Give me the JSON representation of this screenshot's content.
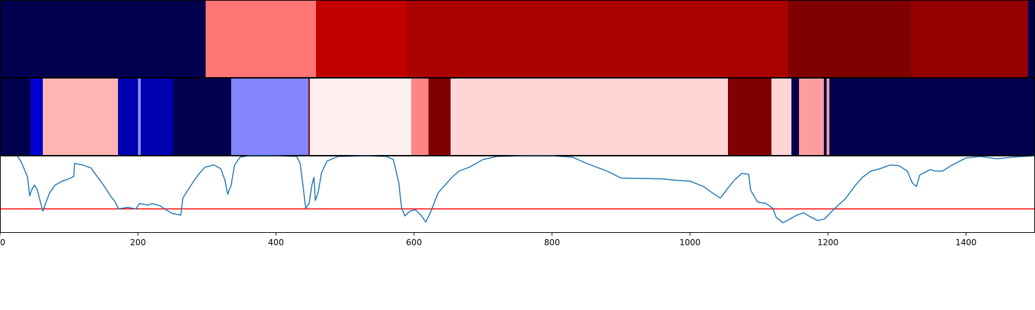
{
  "chart_data": [
    {
      "type": "heatmap",
      "colormap": "seismic",
      "x_range": [
        0,
        1500
      ],
      "segments": [
        {
          "x0": 0,
          "x1": 298,
          "color": "#00004e"
        },
        {
          "x0": 298,
          "x1": 458,
          "color": "#ff7575"
        },
        {
          "x0": 458,
          "x1": 590,
          "color": "#c10000"
        },
        {
          "x0": 590,
          "x1": 1142,
          "color": "#aa0000"
        },
        {
          "x0": 1142,
          "x1": 1320,
          "color": "#800000"
        },
        {
          "x0": 1320,
          "x1": 1490,
          "color": "#940000"
        },
        {
          "x0": 1490,
          "x1": 1500,
          "color": "#00004e"
        }
      ]
    },
    {
      "type": "heatmap",
      "colormap": "seismic",
      "x_range": [
        0,
        1500
      ],
      "segments": [
        {
          "x0": 0,
          "x1": 44,
          "color": "#00004e"
        },
        {
          "x0": 44,
          "x1": 62,
          "color": "#0000d0"
        },
        {
          "x0": 62,
          "x1": 171,
          "color": "#ffb5b5"
        },
        {
          "x0": 171,
          "x1": 200,
          "color": "#0000b2"
        },
        {
          "x0": 200,
          "x1": 204,
          "color": "#8c8cff"
        },
        {
          "x0": 204,
          "x1": 251,
          "color": "#0000b2"
        },
        {
          "x0": 251,
          "x1": 335,
          "color": "#00004e"
        },
        {
          "x0": 335,
          "x1": 447,
          "color": "#8484ff"
        },
        {
          "x0": 447,
          "x1": 449,
          "color": "#800000"
        },
        {
          "x0": 449,
          "x1": 596,
          "color": "#fff0f0"
        },
        {
          "x0": 596,
          "x1": 621,
          "color": "#ff8585"
        },
        {
          "x0": 621,
          "x1": 653,
          "color": "#800000"
        },
        {
          "x0": 653,
          "x1": 1055,
          "color": "#ffd5d5"
        },
        {
          "x0": 1055,
          "x1": 1118,
          "color": "#800000"
        },
        {
          "x0": 1118,
          "x1": 1147,
          "color": "#ffd5d5"
        },
        {
          "x0": 1147,
          "x1": 1158,
          "color": "#00004e"
        },
        {
          "x0": 1158,
          "x1": 1194,
          "color": "#ff9d9d"
        },
        {
          "x0": 1194,
          "x1": 1198,
          "color": "#00004e"
        },
        {
          "x0": 1198,
          "x1": 1202,
          "color": "#ff9d9d"
        },
        {
          "x0": 1202,
          "x1": 1500,
          "color": "#00004e"
        }
      ]
    },
    {
      "type": "line",
      "x_range": [
        0,
        1500
      ],
      "ylim": [
        0,
        1
      ],
      "xticks": [
        0,
        200,
        400,
        600,
        800,
        1000,
        1200,
        1400
      ],
      "xtick_labels": [
        "0",
        "200",
        "400",
        "600",
        "800",
        "1000",
        "1200",
        "1400"
      ],
      "series": [
        {
          "color": "#1f77b4",
          "points": [
            [
              25,
              1.0
            ],
            [
              30,
              0.93
            ],
            [
              35,
              0.83
            ],
            [
              40,
              0.72
            ],
            [
              43,
              0.48
            ],
            [
              46,
              0.56
            ],
            [
              50,
              0.62
            ],
            [
              54,
              0.56
            ],
            [
              58,
              0.42
            ],
            [
              62,
              0.28
            ],
            [
              66,
              0.38
            ],
            [
              72,
              0.52
            ],
            [
              80,
              0.62
            ],
            [
              90,
              0.67
            ],
            [
              100,
              0.7
            ],
            [
              107,
              0.73
            ],
            [
              108,
              0.9
            ],
            [
              120,
              0.88
            ],
            [
              132,
              0.84
            ],
            [
              140,
              0.74
            ],
            [
              150,
              0.62
            ],
            [
              160,
              0.48
            ],
            [
              167,
              0.4
            ],
            [
              172,
              0.31
            ],
            [
              185,
              0.33
            ],
            [
              197,
              0.31
            ],
            [
              202,
              0.38
            ],
            [
              215,
              0.36
            ],
            [
              220,
              0.38
            ],
            [
              232,
              0.35
            ],
            [
              242,
              0.29
            ],
            [
              250,
              0.25
            ],
            [
              262,
              0.23
            ],
            [
              265,
              0.45
            ],
            [
              272,
              0.55
            ],
            [
              280,
              0.66
            ],
            [
              288,
              0.76
            ],
            [
              297,
              0.85
            ],
            [
              310,
              0.88
            ],
            [
              320,
              0.83
            ],
            [
              326,
              0.68
            ],
            [
              330,
              0.5
            ],
            [
              335,
              0.62
            ],
            [
              340,
              0.88
            ],
            [
              348,
              0.98
            ],
            [
              360,
              1.0
            ],
            [
              400,
              1.0
            ],
            [
              430,
              0.99
            ],
            [
              435,
              0.9
            ],
            [
              440,
              0.55
            ],
            [
              443,
              0.32
            ],
            [
              448,
              0.38
            ],
            [
              452,
              0.62
            ],
            [
              455,
              0.72
            ],
            [
              457,
              0.42
            ],
            [
              461,
              0.52
            ],
            [
              466,
              0.78
            ],
            [
              474,
              0.93
            ],
            [
              490,
              0.99
            ],
            [
              530,
              1.0
            ],
            [
              560,
              0.99
            ],
            [
              570,
              0.95
            ],
            [
              578,
              0.65
            ],
            [
              582,
              0.32
            ],
            [
              587,
              0.22
            ],
            [
              594,
              0.28
            ],
            [
              602,
              0.3
            ],
            [
              611,
              0.22
            ],
            [
              617,
              0.14
            ],
            [
              623,
              0.25
            ],
            [
              628,
              0.36
            ],
            [
              635,
              0.52
            ],
            [
              645,
              0.62
            ],
            [
              655,
              0.72
            ],
            [
              665,
              0.8
            ],
            [
              680,
              0.85
            ],
            [
              700,
              0.95
            ],
            [
              720,
              0.99
            ],
            [
              760,
              1.0
            ],
            [
              800,
              1.0
            ],
            [
              830,
              0.98
            ],
            [
              850,
              0.9
            ],
            [
              880,
              0.8
            ],
            [
              900,
              0.71
            ],
            [
              960,
              0.7
            ],
            [
              980,
              0.68
            ],
            [
              1000,
              0.67
            ],
            [
              1020,
              0.6
            ],
            [
              1032,
              0.52
            ],
            [
              1044,
              0.45
            ],
            [
              1055,
              0.58
            ],
            [
              1065,
              0.69
            ],
            [
              1075,
              0.77
            ],
            [
              1085,
              0.76
            ],
            [
              1088,
              0.55
            ],
            [
              1098,
              0.4
            ],
            [
              1110,
              0.38
            ],
            [
              1120,
              0.32
            ],
            [
              1125,
              0.2
            ],
            [
              1135,
              0.13
            ],
            [
              1145,
              0.18
            ],
            [
              1155,
              0.23
            ],
            [
              1165,
              0.26
            ],
            [
              1172,
              0.22
            ],
            [
              1185,
              0.16
            ],
            [
              1195,
              0.18
            ],
            [
              1210,
              0.32
            ],
            [
              1225,
              0.44
            ],
            [
              1240,
              0.62
            ],
            [
              1250,
              0.72
            ],
            [
              1262,
              0.8
            ],
            [
              1275,
              0.83
            ],
            [
              1290,
              0.88
            ],
            [
              1303,
              0.87
            ],
            [
              1315,
              0.8
            ],
            [
              1322,
              0.65
            ],
            [
              1328,
              0.6
            ],
            [
              1333,
              0.75
            ],
            [
              1340,
              0.78
            ],
            [
              1348,
              0.82
            ],
            [
              1356,
              0.8
            ],
            [
              1366,
              0.8
            ],
            [
              1380,
              0.88
            ],
            [
              1400,
              0.97
            ],
            [
              1420,
              0.99
            ],
            [
              1445,
              0.96
            ],
            [
              1465,
              0.98
            ],
            [
              1500,
              1.0
            ]
          ]
        }
      ],
      "threshold": {
        "y": 0.31,
        "color": "#ff0000"
      }
    }
  ]
}
